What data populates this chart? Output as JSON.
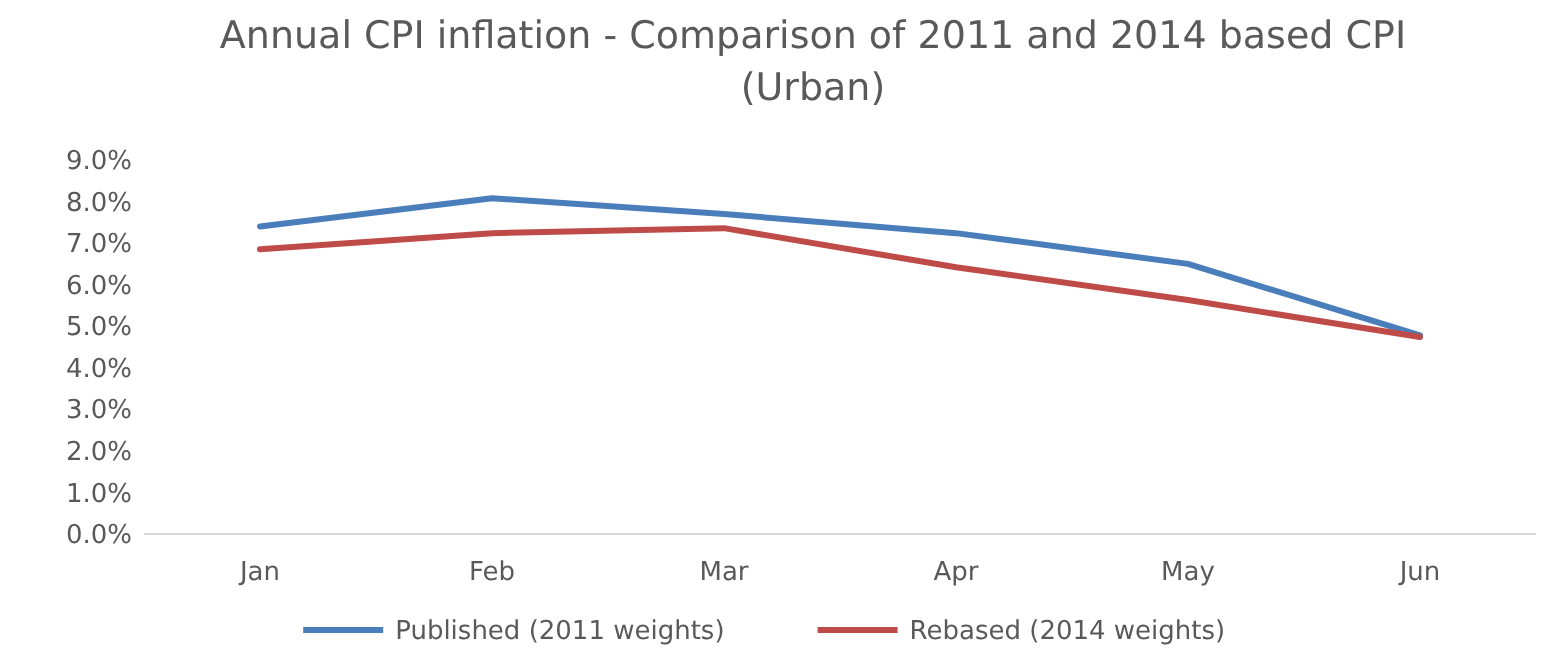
{
  "chart_data": {
    "type": "line",
    "title": "Annual CPI inflation - Comparison of 2011 and 2014 based CPI (Urban)",
    "categories": [
      "Jan",
      "Feb",
      "Mar",
      "Apr",
      "May",
      "Jun"
    ],
    "series": [
      {
        "name": "Published (2011 weights)",
        "color": "#4a7ebb",
        "values": [
          7.4,
          8.08,
          7.7,
          7.24,
          6.5,
          4.78
        ]
      },
      {
        "name": "Rebased (2014 weights)",
        "color": "#be4b48",
        "values": [
          6.85,
          7.24,
          7.36,
          6.42,
          5.63,
          4.74
        ]
      }
    ],
    "ylim": [
      0,
      9
    ],
    "yticks": [
      {
        "value": 0,
        "label": "0.0%"
      },
      {
        "value": 1,
        "label": "1.0%"
      },
      {
        "value": 2,
        "label": "2.0%"
      },
      {
        "value": 3,
        "label": "3.0%"
      },
      {
        "value": 4,
        "label": "4.0%"
      },
      {
        "value": 5,
        "label": "5.0%"
      },
      {
        "value": 6,
        "label": "6.0%"
      },
      {
        "value": 7,
        "label": "7.0%"
      },
      {
        "value": 8,
        "label": "8.0%"
      },
      {
        "value": 9,
        "label": "9.0%"
      }
    ],
    "grid": false,
    "legend": "bottom",
    "marker": "none",
    "line_style": "solid"
  }
}
